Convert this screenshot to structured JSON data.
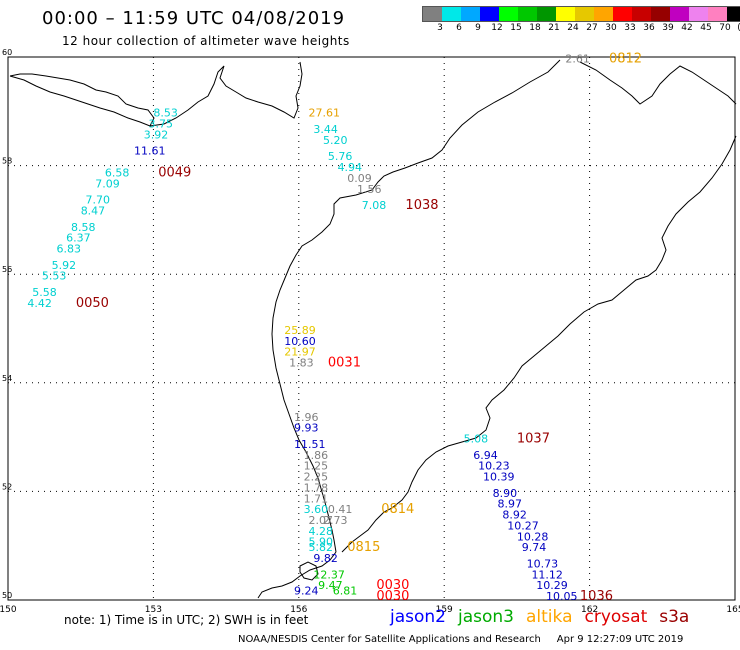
{
  "header": {
    "title": "00:00 – 11:59 UTC 04/08/2019",
    "subtitle": "12 hour collection of altimeter wave heights"
  },
  "scale": {
    "colors": [
      "#808080",
      "#00e8e8",
      "#00a8ff",
      "#0000ff",
      "#00ff00",
      "#00c800",
      "#009600",
      "#ffff00",
      "#e6c800",
      "#ffa500",
      "#ff0000",
      "#c80000",
      "#960000",
      "#c000c0",
      "#ee82ee",
      "#ff80c0",
      "#000000"
    ],
    "labels": [
      "3",
      "6",
      "9",
      "12",
      "15",
      "18",
      "21",
      "24",
      "27",
      "30",
      "33",
      "36",
      "39",
      "42",
      "45",
      "70",
      "(ft)"
    ]
  },
  "axes": {
    "lon_ticks": [
      150,
      153,
      156,
      159,
      162,
      165
    ],
    "lat_ticks": [
      50,
      52,
      54,
      56,
      58,
      60
    ]
  },
  "observations": [
    {
      "text": "8.53",
      "lon": 153.0,
      "lat": 58.9,
      "color": "#00d0d0"
    },
    {
      "text": "3.75",
      "lon": 152.9,
      "lat": 58.7,
      "color": "#00d0d0"
    },
    {
      "text": "3.92",
      "lon": 152.8,
      "lat": 58.5,
      "color": "#00d0d0"
    },
    {
      "text": "11.61",
      "lon": 152.6,
      "lat": 58.2,
      "color": "#0000c0"
    },
    {
      "text": "6.58",
      "lon": 152.0,
      "lat": 57.8,
      "color": "#00d0d0"
    },
    {
      "text": "0049",
      "lon": 153.1,
      "lat": 57.8,
      "color": "#990000"
    },
    {
      "text": "7.09",
      "lon": 151.8,
      "lat": 57.6,
      "color": "#00d0d0"
    },
    {
      "text": "7.70",
      "lon": 151.6,
      "lat": 57.3,
      "color": "#00d0d0"
    },
    {
      "text": "8.47",
      "lon": 151.5,
      "lat": 57.1,
      "color": "#00d0d0"
    },
    {
      "text": "8.58",
      "lon": 151.3,
      "lat": 56.8,
      "color": "#00d0d0"
    },
    {
      "text": "6.37",
      "lon": 151.2,
      "lat": 56.6,
      "color": "#00d0d0"
    },
    {
      "text": "6.83",
      "lon": 151.0,
      "lat": 56.4,
      "color": "#00d0d0"
    },
    {
      "text": "5.92",
      "lon": 150.9,
      "lat": 56.1,
      "color": "#00d0d0"
    },
    {
      "text": "5.53",
      "lon": 150.7,
      "lat": 55.9,
      "color": "#00d0d0"
    },
    {
      "text": "5.58",
      "lon": 150.5,
      "lat": 55.6,
      "color": "#00d0d0"
    },
    {
      "text": "4.42",
      "lon": 150.4,
      "lat": 55.4,
      "color": "#00d0d0"
    },
    {
      "text": "0050",
      "lon": 151.4,
      "lat": 55.4,
      "color": "#990000"
    },
    {
      "text": "27.61",
      "lon": 156.2,
      "lat": 58.9,
      "color": "#e6a000"
    },
    {
      "text": "3.44",
      "lon": 156.3,
      "lat": 58.6,
      "color": "#00d0d0"
    },
    {
      "text": "5.20",
      "lon": 156.5,
      "lat": 58.4,
      "color": "#00d0d0"
    },
    {
      "text": "5.76",
      "lon": 156.6,
      "lat": 58.1,
      "color": "#00d0d0"
    },
    {
      "text": "4.94",
      "lon": 156.8,
      "lat": 57.9,
      "color": "#00d0d0"
    },
    {
      "text": "0.09",
      "lon": 157.0,
      "lat": 57.7,
      "color": "#808080"
    },
    {
      "text": "1.56",
      "lon": 157.2,
      "lat": 57.5,
      "color": "#808080"
    },
    {
      "text": "7.08",
      "lon": 157.3,
      "lat": 57.2,
      "color": "#00d0d0"
    },
    {
      "text": "1038",
      "lon": 158.2,
      "lat": 57.2,
      "color": "#990000"
    },
    {
      "text": "2.61",
      "lon": 161.5,
      "lat": 59.9,
      "color": "#808080"
    },
    {
      "text": "0812",
      "lon": 162.4,
      "lat": 59.9,
      "color": "#e6a000"
    },
    {
      "text": "25.89",
      "lon": 155.7,
      "lat": 54.9,
      "color": "#e6c800"
    },
    {
      "text": "10.60",
      "lon": 155.7,
      "lat": 54.7,
      "color": "#0000c0"
    },
    {
      "text": "21.97",
      "lon": 155.7,
      "lat": 54.5,
      "color": "#e6c800"
    },
    {
      "text": "1.83",
      "lon": 155.8,
      "lat": 54.3,
      "color": "#808080"
    },
    {
      "text": "0031",
      "lon": 156.6,
      "lat": 54.3,
      "color": "#ff0000"
    },
    {
      "text": "1.96",
      "lon": 155.9,
      "lat": 53.3,
      "color": "#808080"
    },
    {
      "text": "9.93",
      "lon": 155.9,
      "lat": 53.1,
      "color": "#0000c0"
    },
    {
      "text": "11.51",
      "lon": 155.9,
      "lat": 52.8,
      "color": "#0000c0"
    },
    {
      "text": "1.86",
      "lon": 156.1,
      "lat": 52.6,
      "color": "#808080"
    },
    {
      "text": "1.25",
      "lon": 156.1,
      "lat": 52.4,
      "color": "#808080"
    },
    {
      "text": "2.25",
      "lon": 156.1,
      "lat": 52.2,
      "color": "#808080"
    },
    {
      "text": "1.78",
      "lon": 156.1,
      "lat": 52.0,
      "color": "#808080"
    },
    {
      "text": "1.71",
      "lon": 156.1,
      "lat": 51.8,
      "color": "#808080"
    },
    {
      "text": "3.60",
      "lon": 156.1,
      "lat": 51.6,
      "color": "#00d0d0"
    },
    {
      "text": "0.41",
      "lon": 156.6,
      "lat": 51.6,
      "color": "#808080"
    },
    {
      "text": "0814",
      "lon": 157.7,
      "lat": 51.6,
      "color": "#e6a000"
    },
    {
      "text": "2.07",
      "lon": 156.2,
      "lat": 51.4,
      "color": "#808080"
    },
    {
      "text": "2.73",
      "lon": 156.5,
      "lat": 51.4,
      "color": "#808080"
    },
    {
      "text": "4.28",
      "lon": 156.2,
      "lat": 51.2,
      "color": "#00d0d0"
    },
    {
      "text": "5.90",
      "lon": 156.2,
      "lat": 51.0,
      "color": "#00d0d0"
    },
    {
      "text": "5.82",
      "lon": 156.2,
      "lat": 50.9,
      "color": "#00d0d0"
    },
    {
      "text": "0815",
      "lon": 157.0,
      "lat": 50.9,
      "color": "#e6a000"
    },
    {
      "text": "9.82",
      "lon": 156.3,
      "lat": 50.7,
      "color": "#0000c0"
    },
    {
      "text": "12.37",
      "lon": 156.3,
      "lat": 50.4,
      "color": "#00c800"
    },
    {
      "text": "9.24",
      "lon": 155.9,
      "lat": 50.1,
      "color": "#0000c0"
    },
    {
      "text": "9.47",
      "lon": 156.4,
      "lat": 50.2,
      "color": "#00c800"
    },
    {
      "text": "6.81",
      "lon": 156.7,
      "lat": 50.1,
      "color": "#00c800"
    },
    {
      "text": "0030",
      "lon": 157.6,
      "lat": 50.2,
      "color": "#ff0000"
    },
    {
      "text": "0030",
      "lon": 157.6,
      "lat": 50.0,
      "color": "#ff0000"
    },
    {
      "text": "5.08",
      "lon": 159.4,
      "lat": 52.9,
      "color": "#00d0d0"
    },
    {
      "text": "1037",
      "lon": 160.5,
      "lat": 52.9,
      "color": "#990000"
    },
    {
      "text": "6.94",
      "lon": 159.6,
      "lat": 52.6,
      "color": "#0000c0"
    },
    {
      "text": "10.23",
      "lon": 159.7,
      "lat": 52.4,
      "color": "#0000c0"
    },
    {
      "text": "10.39",
      "lon": 159.8,
      "lat": 52.2,
      "color": "#0000c0"
    },
    {
      "text": "8.90",
      "lon": 160.0,
      "lat": 51.9,
      "color": "#0000c0"
    },
    {
      "text": "8.97",
      "lon": 160.1,
      "lat": 51.7,
      "color": "#0000c0"
    },
    {
      "text": "8.92",
      "lon": 160.2,
      "lat": 51.5,
      "color": "#0000c0"
    },
    {
      "text": "10.27",
      "lon": 160.3,
      "lat": 51.3,
      "color": "#0000c0"
    },
    {
      "text": "10.28",
      "lon": 160.5,
      "lat": 51.1,
      "color": "#0000c0"
    },
    {
      "text": "9.74",
      "lon": 160.6,
      "lat": 50.9,
      "color": "#0000c0"
    },
    {
      "text": "10.73",
      "lon": 160.7,
      "lat": 50.6,
      "color": "#0000c0"
    },
    {
      "text": "11.12",
      "lon": 160.8,
      "lat": 50.4,
      "color": "#0000c0"
    },
    {
      "text": "10.29",
      "lon": 160.9,
      "lat": 50.2,
      "color": "#0000c0"
    },
    {
      "text": "10.05",
      "lon": 161.1,
      "lat": 50.0,
      "color": "#0000c0"
    },
    {
      "text": "1036",
      "lon": 161.8,
      "lat": 50.0,
      "color": "#990000"
    }
  ],
  "footer": {
    "note": "note: 1) Time is in UTC; 2) SWH is in feet",
    "legend": [
      {
        "label": "jason2",
        "color": "#0000ff"
      },
      {
        "label": "jason3",
        "color": "#00aa00"
      },
      {
        "label": "altika",
        "color": "#ffa500"
      },
      {
        "label": "cryosat",
        "color": "#dd0000"
      },
      {
        "label": "s3a",
        "color": "#990000"
      }
    ],
    "credit": "NOAA/NESDIS Center for Satellite Applications and Research",
    "timestamp": "Apr  9 12:27:09 UTC 2019"
  }
}
